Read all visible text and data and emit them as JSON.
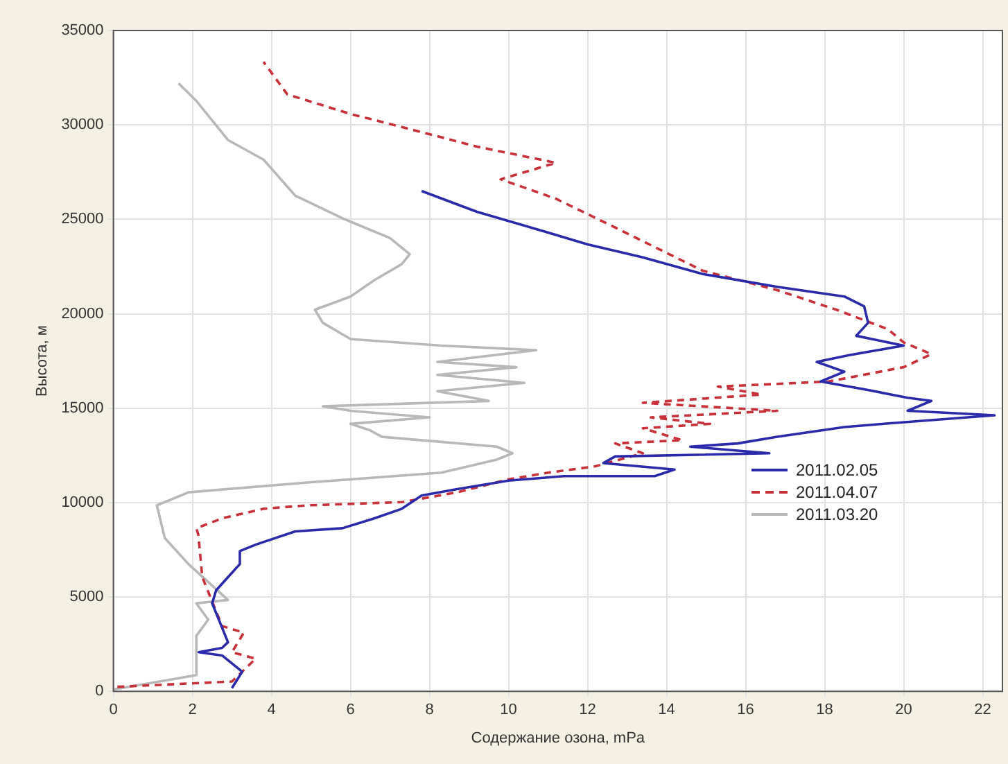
{
  "chart_data": {
    "type": "line",
    "xlabel": "Содержание озона, mPa",
    "ylabel": "Высота, м",
    "xlim": [
      0,
      22.5
    ],
    "ylim": [
      0,
      35000
    ],
    "xticks": [
      0,
      2,
      4,
      6,
      8,
      10,
      12,
      14,
      16,
      18,
      20,
      22
    ],
    "yticks": [
      0,
      5000,
      10000,
      15000,
      20000,
      25000,
      30000,
      35000
    ],
    "grid": true,
    "legend": "bottom right",
    "marker": "none",
    "series": [
      {
        "name": "2011.02.05",
        "color": "#2a2aaa",
        "line_style": "solid",
        "x": [
          3.0,
          3.26,
          2.75,
          2.16,
          2.75,
          2.9,
          2.5,
          2.6,
          2.9,
          3.2,
          3.2,
          3.6,
          4.6,
          5.8,
          6.6,
          7.3,
          7.8,
          8.7,
          10.0,
          11.4,
          13.7,
          14.2,
          12.4,
          12.7,
          16.6,
          14.6,
          15.8,
          16.8,
          18.5,
          19.5,
          22.3,
          20.1,
          20.7,
          20.1,
          19.0,
          17.9,
          18.5,
          17.8,
          18.6,
          20.0,
          18.8,
          19.1,
          19.0,
          18.5,
          16.8,
          14.9,
          13.4,
          12.0,
          10.9,
          9.2,
          7.8
        ],
        "values": [
          170,
          1040,
          1900,
          2070,
          2300,
          2600,
          4660,
          5350,
          6050,
          6740,
          7430,
          7770,
          8470,
          8640,
          9160,
          9670,
          10370,
          10710,
          11160,
          11400,
          11400,
          11750,
          12090,
          12440,
          12610,
          12960,
          13130,
          13480,
          14000,
          14170,
          14620,
          14860,
          15380,
          15550,
          16000,
          16410,
          16930,
          17450,
          17800,
          18310,
          18830,
          19520,
          20390,
          20910,
          21420,
          22110,
          22980,
          23670,
          24360,
          25400,
          26500
        ]
      },
      {
        "name": "2011.04.07",
        "color": "#c8303a",
        "line_style": "dashed",
        "x": [
          0.1,
          3.0,
          3.6,
          3.0,
          3.3,
          2.75,
          2.25,
          2.15,
          2.1,
          2.75,
          3.8,
          4.9,
          7.3,
          8.7,
          10.0,
          11.0,
          12.2,
          13.4,
          12.7,
          14.4,
          13.4,
          15.1,
          13.6,
          16.8,
          13.4,
          16.4,
          15.3,
          18.1,
          20.0,
          20.7,
          20.0,
          19.6,
          18.3,
          16.8,
          14.9,
          12.9,
          11.2,
          9.8,
          11.2,
          9.2,
          7.3,
          6.0,
          4.4,
          3.8
        ],
        "values": [
          240,
          520,
          1730,
          2070,
          3110,
          3460,
          6050,
          8290,
          8640,
          9160,
          9670,
          9850,
          10020,
          10540,
          11230,
          11580,
          11920,
          12610,
          13130,
          13300,
          13930,
          14170,
          14510,
          14860,
          15280,
          15720,
          16140,
          16410,
          17170,
          17860,
          18480,
          19180,
          20210,
          21250,
          22290,
          24360,
          26090,
          27120,
          27990,
          28850,
          29890,
          30580,
          31620,
          33340
        ]
      },
      {
        "name": "2011.03.20",
        "color": "#b8b8b8",
        "line_style": "solid",
        "x": [
          0.0,
          2.1,
          2.1,
          2.4,
          2.1,
          2.9,
          1.9,
          1.3,
          1.1,
          1.9,
          4.9,
          8.3,
          9.7,
          10.1,
          9.7,
          6.8,
          6.5,
          6.0,
          8.0,
          6.0,
          5.3,
          9.5,
          8.2,
          10.4,
          8.2,
          10.2,
          8.2,
          10.7,
          8.3,
          6.0,
          5.3,
          5.1,
          6.0,
          6.6,
          7.3,
          7.5,
          7.0,
          5.8,
          4.6,
          3.8,
          2.9,
          2.1,
          1.65
        ],
        "values": [
          100,
          860,
          2940,
          3800,
          4660,
          4840,
          6740,
          8120,
          9850,
          10540,
          11060,
          11580,
          12270,
          12610,
          12960,
          13480,
          13820,
          14170,
          14510,
          14860,
          15100,
          15380,
          15900,
          16340,
          16760,
          17170,
          17450,
          18070,
          18310,
          18660,
          19520,
          20210,
          20910,
          21770,
          22630,
          23150,
          24010,
          25050,
          26260,
          28160,
          29200,
          31270,
          32200
        ]
      }
    ]
  }
}
